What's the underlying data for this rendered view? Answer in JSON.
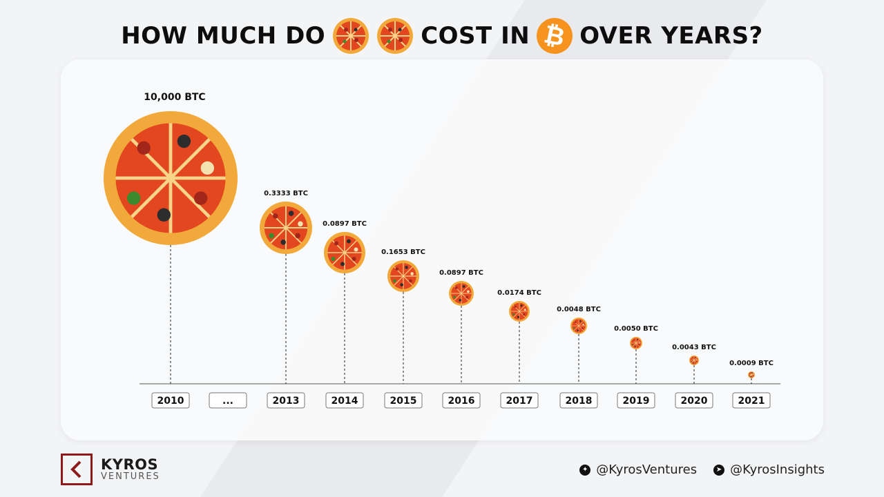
{
  "header": {
    "title_part1": "HOW MUCH DO",
    "title_part2": "COST IN",
    "title_part3": "OVER YEARS?",
    "bitcoin_symbol": "₿"
  },
  "chart_data": {
    "type": "bar",
    "categories": [
      "2010",
      "...",
      "2013",
      "2014",
      "2015",
      "2016",
      "2017",
      "2018",
      "2019",
      "2020",
      "2021"
    ],
    "values": [
      10000,
      null,
      0.3333,
      0.0897,
      0.1653,
      0.0897,
      0.0174,
      0.0048,
      0.005,
      0.0043,
      0.0009
    ],
    "value_labels": [
      "10,000 BTC",
      "",
      "0.3333 BTC",
      "0.0897 BTC",
      "0.1653 BTC",
      "0.0897 BTC",
      "0.0174 BTC",
      "0.0048 BTC",
      "0.0050 BTC",
      "0.0043 BTC",
      "0.0009 BTC"
    ],
    "marker": "pizza-icon",
    "title": "HOW MUCH DO 🍕🍕 COST IN ₿ OVER YEARS?"
  },
  "footer": {
    "brand_name": "KYROS",
    "brand_sub": "VENTURES",
    "social": [
      {
        "icon": "twitter-icon",
        "handle": "@KyrosVentures"
      },
      {
        "icon": "telegram-icon",
        "handle": "@KyrosInsights"
      }
    ]
  },
  "colors": {
    "accent": "#f5931e",
    "brand": "#8b1a1a",
    "pizza_crust": "#f2a93b",
    "pizza_sauce": "#e2471f"
  }
}
